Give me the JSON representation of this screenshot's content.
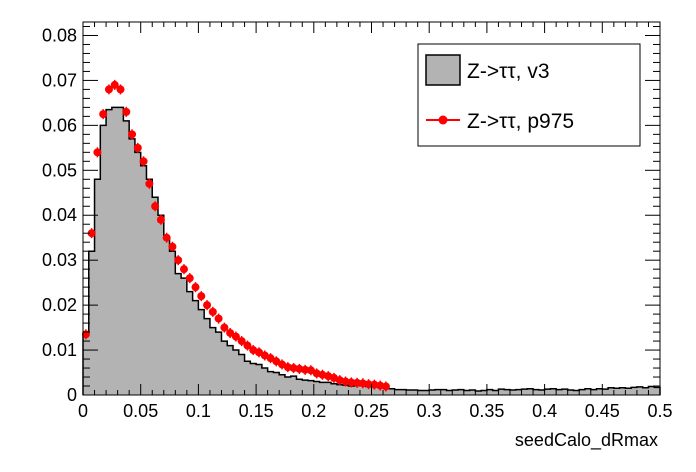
{
  "chart_data": {
    "type": "histogram",
    "xlabel": "seedCalo_dRmax",
    "ylabel": "",
    "xlim": [
      0,
      0.5
    ],
    "ylim": [
      0,
      0.083
    ],
    "grid": false,
    "legend_position": "top-right",
    "x_ticks": [
      0,
      0.05,
      0.1,
      0.15,
      0.2,
      0.25,
      0.3,
      0.35,
      0.4,
      0.45,
      0.5
    ],
    "x_tick_labels": [
      "0",
      "0.05",
      "0.1",
      "0.15",
      "0.2",
      "0.25",
      "0.3",
      "0.35",
      "0.4",
      "0.45",
      "0.5"
    ],
    "y_ticks": [
      0,
      0.01,
      0.02,
      0.03,
      0.04,
      0.05,
      0.06,
      0.07,
      0.08
    ],
    "y_tick_labels": [
      "0",
      "0.01",
      "0.02",
      "0.03",
      "0.04",
      "0.05",
      "0.06",
      "0.07",
      "0.08"
    ],
    "bin_width": 0.005,
    "series": [
      {
        "name": "Z->ττ, v3",
        "style": "filled-histogram",
        "fill": "#b3b3b3",
        "line": "#000000",
        "x_start": 0,
        "values": [
          0.0135,
          0.032,
          0.048,
          0.06,
          0.0635,
          0.064,
          0.064,
          0.061,
          0.057,
          0.054,
          0.051,
          0.048,
          0.044,
          0.04,
          0.035,
          0.032,
          0.027,
          0.026,
          0.023,
          0.021,
          0.019,
          0.017,
          0.015,
          0.014,
          0.012,
          0.011,
          0.01,
          0.009,
          0.0075,
          0.007,
          0.0068,
          0.006,
          0.0052,
          0.005,
          0.0045,
          0.004,
          0.0042,
          0.0035,
          0.0033,
          0.0032,
          0.003,
          0.0028,
          0.0028,
          0.0025,
          0.0023,
          0.0022,
          0.002,
          0.0021,
          0.0021,
          0.0019,
          0.0018,
          0.0018,
          0.0016,
          0.0014,
          0.0012,
          0.0012,
          0.0011,
          0.0011,
          0.001,
          0.001,
          0.0011,
          0.0012,
          0.0012,
          0.001,
          0.0011,
          0.0012,
          0.001,
          0.0011,
          0.0009,
          0.001,
          0.0012,
          0.001,
          0.0013,
          0.0012,
          0.0011,
          0.0012,
          0.0013,
          0.0014,
          0.0012,
          0.0011,
          0.0013,
          0.0014,
          0.0012,
          0.0013,
          0.0011,
          0.001,
          0.0012,
          0.0014,
          0.0012,
          0.0014,
          0.0013,
          0.0016,
          0.0015,
          0.0016,
          0.0015,
          0.0017,
          0.0018,
          0.0016,
          0.0019,
          0.0017
        ]
      },
      {
        "name": "Z->ττ, p975",
        "style": "points-with-errors",
        "color": "#ff0000",
        "x_start": 0,
        "values": [
          0.0135,
          0.036,
          0.054,
          0.0625,
          0.068,
          0.069,
          0.068,
          0.063,
          0.058,
          0.055,
          0.052,
          0.047,
          0.042,
          0.039,
          0.035,
          0.033,
          0.03,
          0.028,
          0.026,
          0.024,
          0.022,
          0.02,
          0.0185,
          0.017,
          0.015,
          0.0138,
          0.013,
          0.012,
          0.011,
          0.01,
          0.0095,
          0.0088,
          0.0082,
          0.0075,
          0.0068,
          0.0062,
          0.006,
          0.0058,
          0.0056,
          0.0055,
          0.0048,
          0.0045,
          0.0042,
          0.0038,
          0.0033,
          0.003,
          0.0028,
          0.0027,
          0.0026,
          0.0024,
          0.0023,
          0.0021,
          0.0019
        ]
      }
    ]
  }
}
